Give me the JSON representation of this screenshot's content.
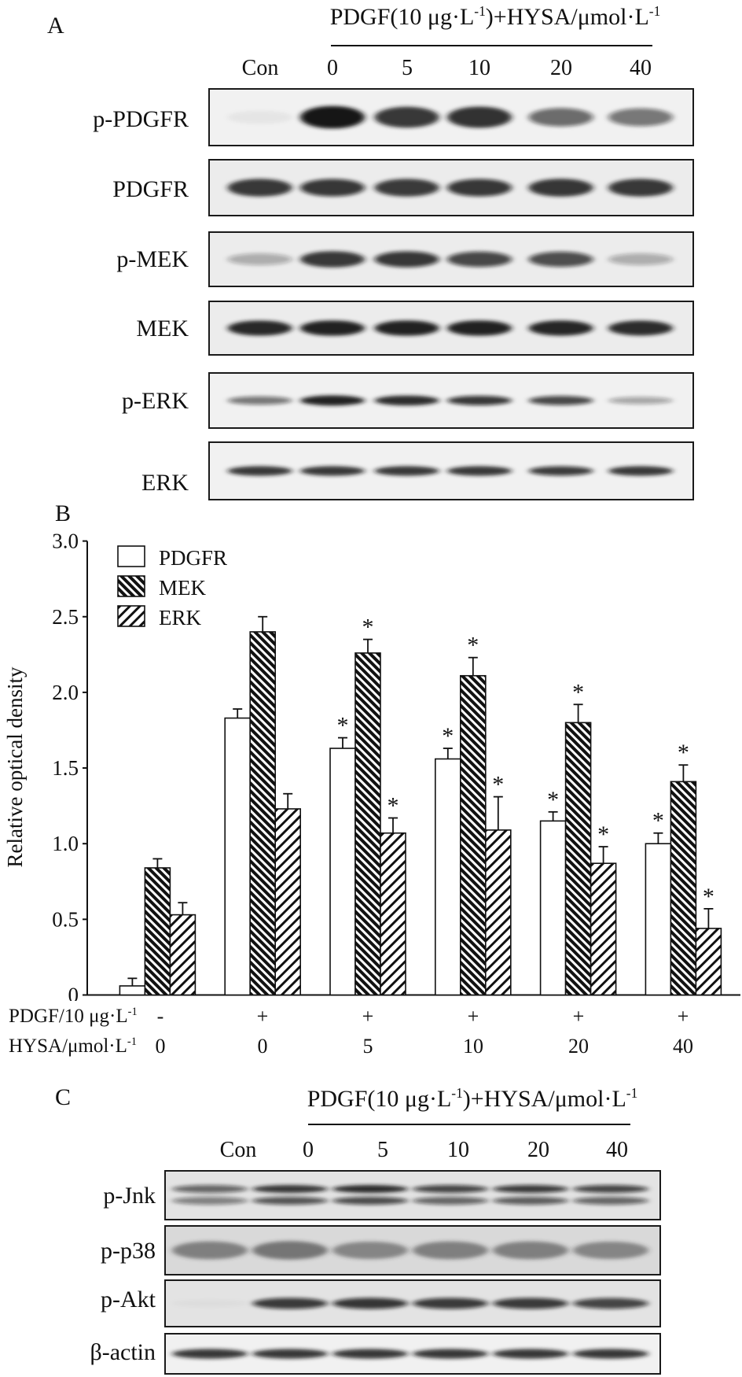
{
  "panel_a": {
    "label": "A",
    "header": {
      "p1": "PDGF(10 μg·L",
      "s1": "-1",
      "p2": ")+HYSA/μmol·L",
      "s2": "-1"
    },
    "lanes": [
      "Con",
      "0",
      "5",
      "10",
      "20",
      "40"
    ],
    "blots": [
      {
        "name": "p-PDGFR",
        "intensity": [
          0.05,
          1.0,
          0.85,
          0.88,
          0.6,
          0.55
        ]
      },
      {
        "name": "PDGFR",
        "intensity": [
          0.85,
          0.82,
          0.84,
          0.82,
          0.86,
          0.85
        ]
      },
      {
        "name": "p-MEK",
        "intensity": [
          0.3,
          0.85,
          0.82,
          0.75,
          0.72,
          0.3
        ]
      },
      {
        "name": "MEK",
        "intensity": [
          0.92,
          0.95,
          0.95,
          0.95,
          0.93,
          0.9
        ]
      },
      {
        "name": "p-ERK",
        "intensity": [
          0.55,
          0.95,
          0.9,
          0.82,
          0.75,
          0.35
        ]
      },
      {
        "name": "ERK",
        "intensity": [
          0.85,
          0.85,
          0.85,
          0.85,
          0.8,
          0.85
        ]
      }
    ]
  },
  "panel_b": {
    "label": "B"
  },
  "panel_c": {
    "label": "C",
    "header": {
      "p1": "PDGF(10 μg·L",
      "s1": "-1",
      "p2": ")+HYSA/μmol·L",
      "s2": "-1"
    },
    "lanes": [
      "Con",
      "0",
      "5",
      "10",
      "20",
      "40"
    ],
    "blots": [
      {
        "name": "p-Jnk",
        "intensity": [
          0.6,
          0.85,
          0.9,
          0.75,
          0.8,
          0.75
        ]
      },
      {
        "name": "p-p38",
        "intensity": [
          0.55,
          0.6,
          0.5,
          0.55,
          0.55,
          0.5
        ]
      },
      {
        "name": "p-Akt",
        "intensity": [
          0.03,
          0.8,
          0.82,
          0.8,
          0.8,
          0.75
        ]
      },
      {
        "name": "β-actin",
        "intensity": [
          0.85,
          0.85,
          0.85,
          0.85,
          0.85,
          0.85
        ]
      }
    ]
  },
  "chart_data": {
    "type": "bar",
    "ylabel": "Relative optical density",
    "ylim": [
      0,
      3.0
    ],
    "yticks": [
      0,
      0.5,
      1.0,
      1.5,
      2.0,
      2.5,
      3.0
    ],
    "ytick_labels": [
      "0",
      "0.5",
      "1.0",
      "1.5",
      "2.0",
      "2.5",
      "3.0"
    ],
    "categories": [
      "0",
      "0",
      "5",
      "10",
      "20",
      "40"
    ],
    "x_rows": [
      {
        "label": "PDGF/10 μg·L",
        "label_sup": "-1",
        "values": [
          "-",
          "+",
          "+",
          "+",
          "+",
          "+"
        ]
      },
      {
        "label": "HYSA/μmol·L",
        "label_sup": "-1"
      }
    ],
    "legend_position": "top-left",
    "sig_marker": "*",
    "series": [
      {
        "name": "PDGFR",
        "fill_pattern": "none",
        "values": [
          0.06,
          1.83,
          1.63,
          1.56,
          1.15,
          1.0
        ],
        "errors": [
          0.05,
          0.06,
          0.07,
          0.07,
          0.06,
          0.07
        ],
        "significant": [
          false,
          false,
          true,
          true,
          true,
          true
        ]
      },
      {
        "name": "MEK",
        "fill_pattern": "backslash",
        "values": [
          0.84,
          2.4,
          2.26,
          2.11,
          1.8,
          1.41
        ],
        "errors": [
          0.06,
          0.1,
          0.09,
          0.12,
          0.12,
          0.11
        ],
        "significant": [
          false,
          false,
          true,
          true,
          true,
          true
        ]
      },
      {
        "name": "ERK",
        "fill_pattern": "slash",
        "values": [
          0.53,
          1.23,
          1.07,
          1.09,
          0.87,
          0.44
        ],
        "errors": [
          0.08,
          0.1,
          0.1,
          0.22,
          0.11,
          0.13
        ],
        "significant": [
          false,
          false,
          true,
          true,
          true,
          true
        ]
      }
    ]
  }
}
